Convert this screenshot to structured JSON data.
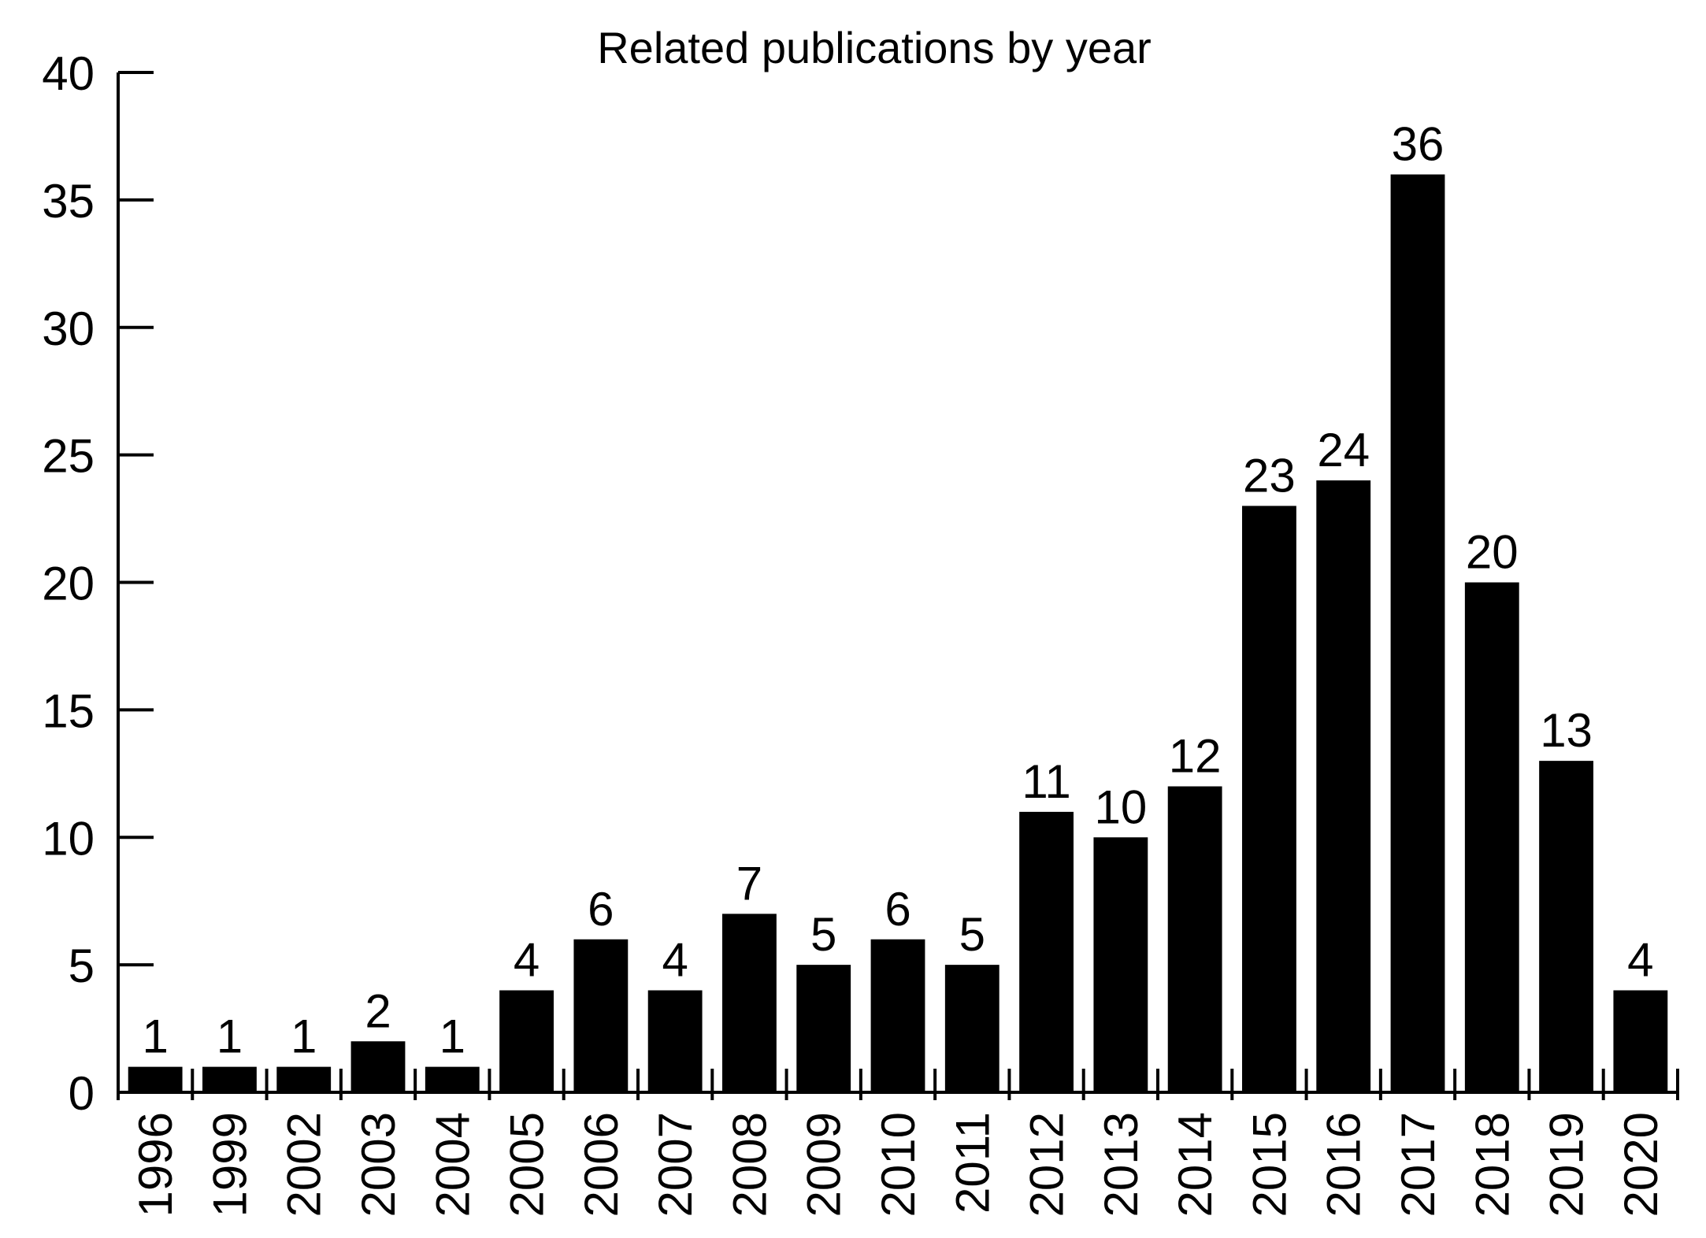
{
  "chart_data": {
    "type": "bar",
    "title": "Related publications by year",
    "xlabel": "",
    "ylabel": "",
    "categories": [
      "1996",
      "1999",
      "2002",
      "2003",
      "2004",
      "2005",
      "2006",
      "2007",
      "2008",
      "2009",
      "2010",
      "2011",
      "2012",
      "2013",
      "2014",
      "2015",
      "2016",
      "2017",
      "2018",
      "2019",
      "2020"
    ],
    "values": [
      1,
      1,
      1,
      2,
      1,
      4,
      6,
      4,
      7,
      5,
      6,
      5,
      11,
      10,
      12,
      23,
      24,
      36,
      20,
      13,
      4
    ],
    "ylim": [
      0,
      40
    ],
    "yticks": [
      0,
      5,
      10,
      15,
      20,
      25,
      30,
      35,
      40
    ],
    "ytick_labels": [
      "0",
      "5",
      "10",
      "15",
      "20",
      "25",
      "30",
      "35",
      "40"
    ],
    "data_labels": [
      "1",
      "1",
      "1",
      "2",
      "1",
      "4",
      "6",
      "4",
      "7",
      "5",
      "6",
      "5",
      "11",
      "10",
      "12",
      "23",
      "24",
      "36",
      "20",
      "13",
      "4"
    ],
    "grid": false,
    "legend": "none",
    "bar_color": "#000000"
  }
}
